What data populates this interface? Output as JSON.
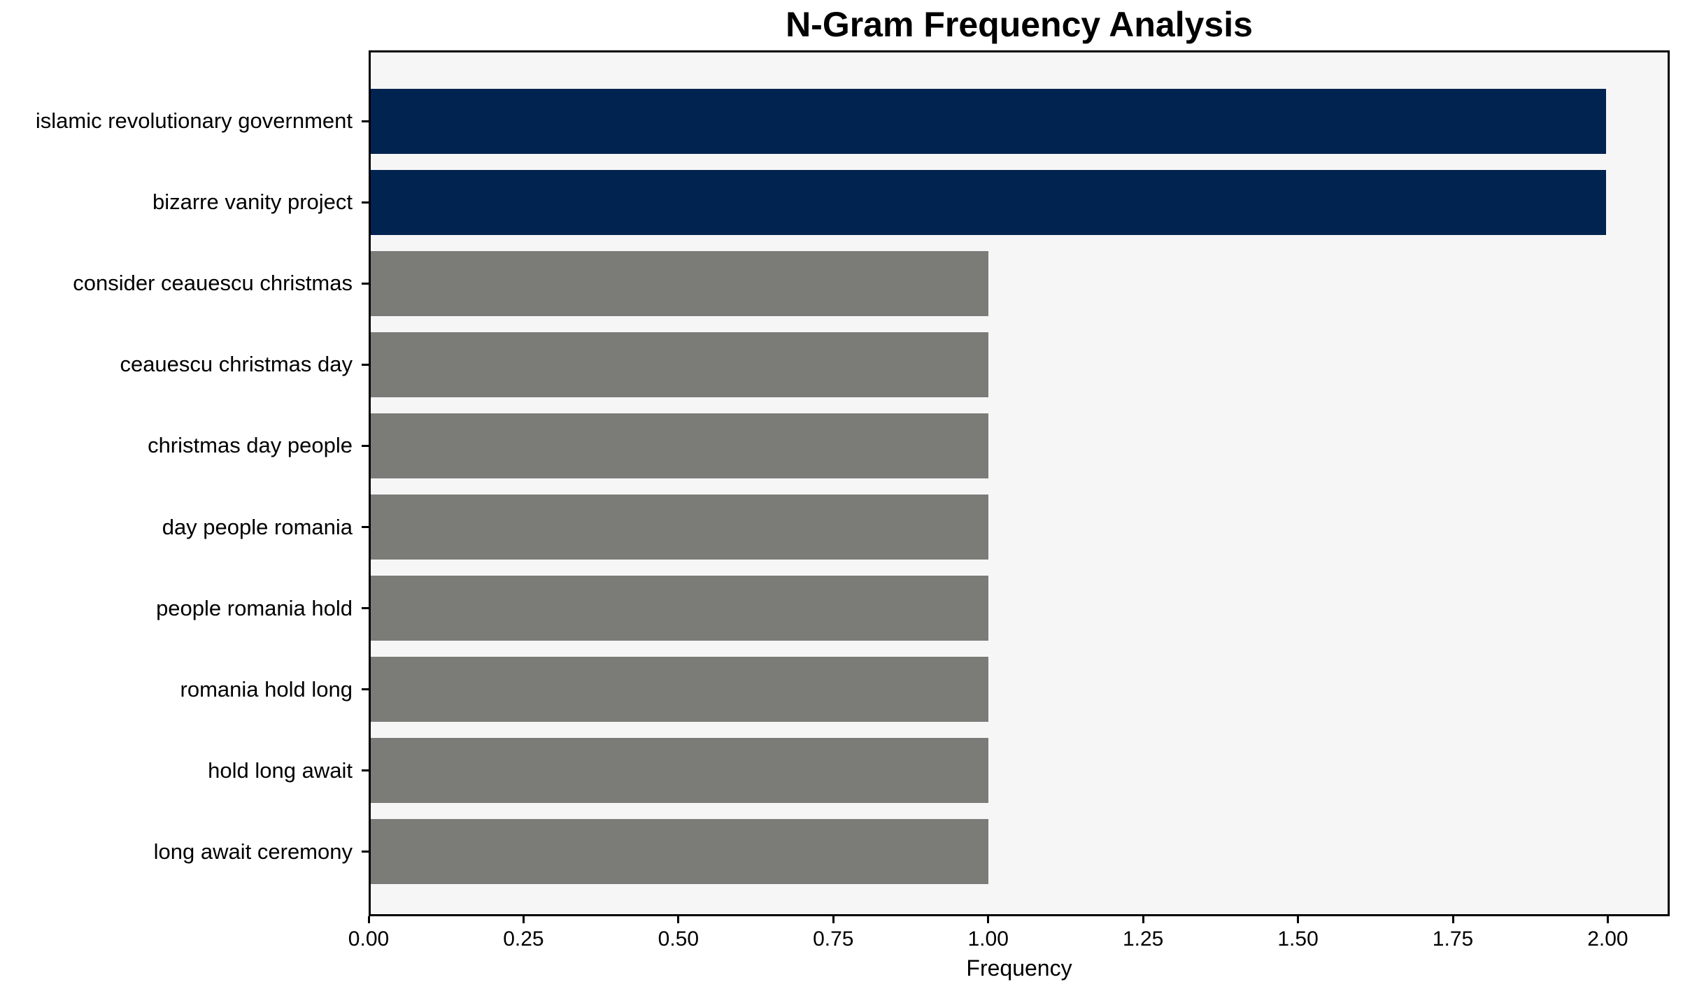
{
  "chart": {
    "title": "N-Gram Frequency Analysis",
    "xlabel": "Frequency"
  },
  "chart_data": {
    "type": "bar",
    "orientation": "horizontal",
    "title": "N-Gram Frequency Analysis",
    "xlabel": "Frequency",
    "ylabel": "",
    "categories": [
      "islamic revolutionary government",
      "bizarre vanity project",
      "consider ceauescu christmas",
      "ceauescu christmas day",
      "christmas day people",
      "day people romania",
      "people romania hold",
      "romania hold long",
      "hold long await",
      "long await ceremony"
    ],
    "values": [
      2,
      2,
      1,
      1,
      1,
      1,
      1,
      1,
      1,
      1
    ],
    "bar_colors": [
      "#002350",
      "#002350",
      "#7b7b78",
      "#7b7b78",
      "#7b7b78",
      "#7b7b78",
      "#7b7b78",
      "#7b7b78",
      "#7b7b78",
      "#7b7b78"
    ],
    "xlim": [
      0,
      2.1
    ],
    "xticks": [
      "0.00",
      "0.25",
      "0.50",
      "0.75",
      "1.00",
      "1.25",
      "1.50",
      "1.75",
      "2.00"
    ],
    "grid": false,
    "legend": false,
    "colors": {
      "highlight_bar": "#002350",
      "default_bar": "#7b7b78",
      "plot_background": "#f7f6f6",
      "figure_background": "#ffffff",
      "spine": "#000000"
    }
  }
}
